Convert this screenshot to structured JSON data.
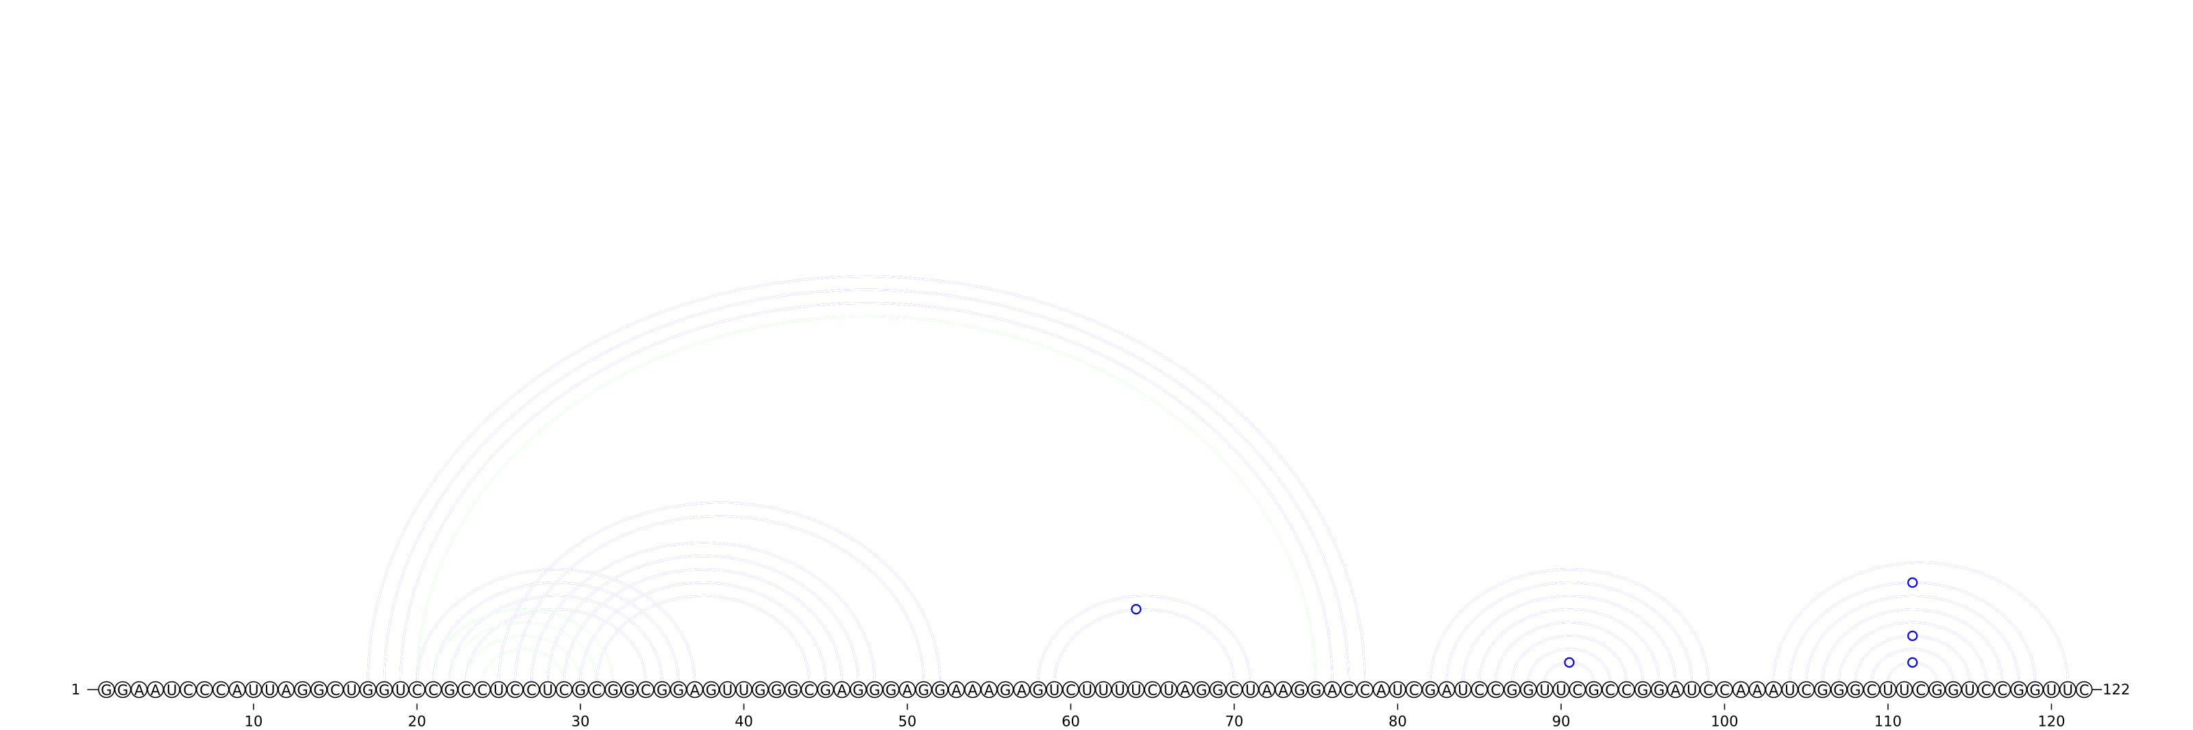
{
  "sequence": "GGAAUCCCAUUAGGCUGGUCCGCCUCCUCGCGGCGGAGUUGGGCGAGGGAGGAAAGAGUCUUUUCUAGGCUAAGGACCAUCGAUCCGGUUCGCCGGAUCCAAAUCGGGCUUCGGUCCGGUUC",
  "start_label": "1",
  "end_label": "122",
  "tick_positions": [
    10,
    20,
    30,
    40,
    50,
    60,
    70,
    80,
    90,
    100,
    110,
    120
  ],
  "tick_labels": [
    "10",
    "20",
    "30",
    "40",
    "50",
    "60",
    "70",
    "80",
    "90",
    "100",
    "110",
    "120"
  ],
  "colors": {
    "blue": "#0000ff",
    "green": "#00ee00"
  },
  "arcs": [
    {
      "i": 17,
      "j": 78,
      "color": "blue"
    },
    {
      "i": 18,
      "j": 77,
      "color": "blue"
    },
    {
      "i": 19,
      "j": 76,
      "color": "blue"
    },
    {
      "i": 20,
      "j": 75,
      "color": "green"
    },
    {
      "i": 20,
      "j": 37,
      "color": "blue"
    },
    {
      "i": 21,
      "j": 36,
      "color": "blue"
    },
    {
      "i": 22,
      "j": 35,
      "color": "blue"
    },
    {
      "i": 23,
      "j": 34,
      "color": "blue"
    },
    {
      "i": 21,
      "j": 32,
      "color": "green"
    },
    {
      "i": 22,
      "j": 31,
      "color": "green"
    },
    {
      "i": 23,
      "j": 30,
      "color": "green"
    },
    {
      "i": 24,
      "j": 29,
      "color": "green"
    },
    {
      "i": 25,
      "j": 52,
      "color": "blue"
    },
    {
      "i": 26,
      "j": 51,
      "color": "blue"
    },
    {
      "i": 27,
      "j": 48,
      "color": "blue"
    },
    {
      "i": 28,
      "j": 47,
      "color": "blue"
    },
    {
      "i": 29,
      "j": 46,
      "color": "blue"
    },
    {
      "i": 30,
      "j": 45,
      "color": "blue"
    },
    {
      "i": 31,
      "j": 44,
      "color": "blue"
    },
    {
      "i": 58,
      "j": 71,
      "color": "blue"
    },
    {
      "i": 59,
      "j": 70,
      "color": "blue"
    },
    {
      "i": 82,
      "j": 99,
      "color": "blue"
    },
    {
      "i": 83,
      "j": 98,
      "color": "blue"
    },
    {
      "i": 84,
      "j": 97,
      "color": "blue"
    },
    {
      "i": 85,
      "j": 96,
      "color": "blue"
    },
    {
      "i": 86,
      "j": 95,
      "color": "blue"
    },
    {
      "i": 87,
      "j": 94,
      "color": "blue"
    },
    {
      "i": 88,
      "j": 93,
      "color": "blue"
    },
    {
      "i": 89,
      "j": 92,
      "color": "blue"
    },
    {
      "i": 103,
      "j": 121,
      "color": "blue"
    },
    {
      "i": 104,
      "j": 119,
      "color": "blue"
    },
    {
      "i": 105,
      "j": 118,
      "color": "blue"
    },
    {
      "i": 106,
      "j": 117,
      "color": "blue"
    },
    {
      "i": 107,
      "j": 116,
      "color": "blue"
    },
    {
      "i": 108,
      "j": 115,
      "color": "blue"
    },
    {
      "i": 109,
      "j": 114,
      "color": "blue"
    },
    {
      "i": 110,
      "j": 113,
      "color": "blue"
    }
  ],
  "loop_markers": [
    {
      "x": 64,
      "on_arc": [
        59,
        70
      ]
    },
    {
      "x": 90.5,
      "on_arc": [
        89,
        92
      ]
    },
    {
      "x": 111.5,
      "on_arc": [
        110,
        113
      ]
    },
    {
      "x": 111.5,
      "on_arc": [
        108,
        115
      ]
    },
    {
      "x": 111.5,
      "on_arc": [
        104,
        119
      ]
    }
  ]
}
